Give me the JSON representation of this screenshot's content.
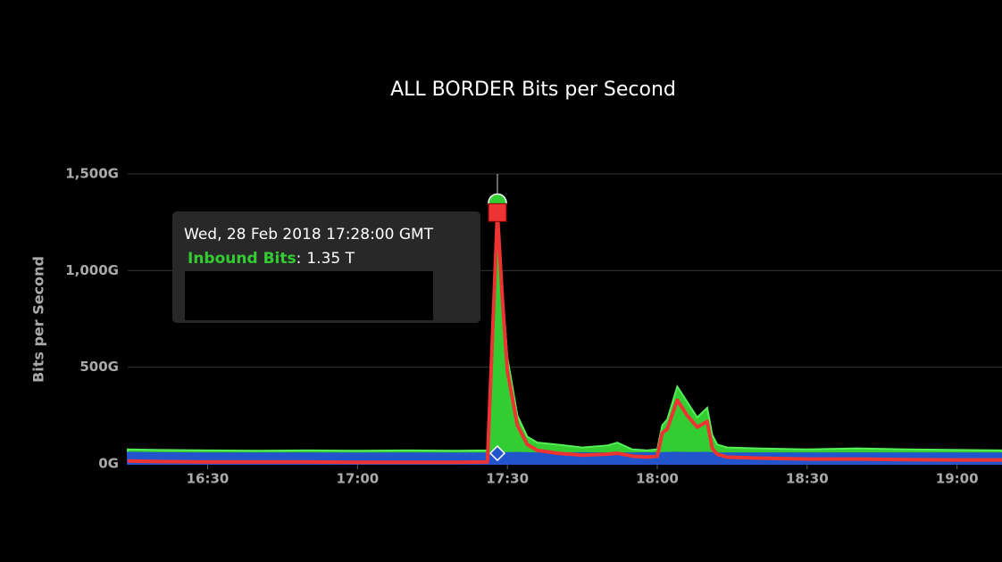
{
  "chart_data": {
    "type": "area",
    "title": "ALL BORDER Bits per Second",
    "y_label": "Bits per Second",
    "x": [
      "16:14",
      "16:20",
      "16:30",
      "16:40",
      "16:50",
      "17:00",
      "17:10",
      "17:20",
      "17:26",
      "17:27",
      "17:28",
      "17:29",
      "17:30",
      "17:32",
      "17:34",
      "17:36",
      "17:40",
      "17:45",
      "17:50",
      "17:52",
      "17:55",
      "17:58",
      "18:00",
      "18:01",
      "18:02",
      "18:04",
      "18:06",
      "18:08",
      "18:10",
      "18:11",
      "18:12",
      "18:14",
      "18:20",
      "18:30",
      "18:40",
      "18:50",
      "19:00",
      "19:09"
    ],
    "series": [
      {
        "name": "Inbound Bits",
        "color": "#33cc33",
        "style": "area",
        "values": [
          75,
          72,
          70,
          68,
          70,
          68,
          70,
          68,
          70,
          700,
          1350,
          900,
          550,
          250,
          140,
          110,
          100,
          85,
          95,
          110,
          75,
          70,
          75,
          200,
          230,
          400,
          320,
          240,
          290,
          150,
          100,
          85,
          80,
          75,
          80,
          75,
          72,
          70
        ]
      },
      {
        "color": "#2255cc",
        "style": "area",
        "values": [
          58,
          56,
          55,
          55,
          55,
          54,
          55,
          54,
          55,
          56,
          55,
          56,
          56,
          57,
          56,
          55,
          55,
          56,
          55,
          55,
          55,
          56,
          55,
          56,
          57,
          58,
          57,
          57,
          58,
          56,
          55,
          55,
          55,
          55,
          55,
          55,
          55,
          55
        ]
      },
      {
        "color": "#ee3333",
        "style": "line",
        "values": [
          15,
          12,
          10,
          10,
          10,
          8,
          8,
          8,
          10,
          650,
          1300,
          850,
          480,
          200,
          100,
          70,
          55,
          45,
          50,
          55,
          40,
          35,
          40,
          160,
          180,
          330,
          250,
          190,
          220,
          80,
          50,
          35,
          30,
          25,
          25,
          22,
          20,
          20
        ]
      }
    ],
    "xlim": [
      "16:14",
      "19:09"
    ],
    "xticks": [
      "16:30",
      "17:00",
      "17:30",
      "18:00",
      "18:30",
      "19:00"
    ],
    "ylim": [
      0,
      1500
    ],
    "yticks": [
      {
        "value": 0,
        "label": "0G"
      },
      {
        "value": 500,
        "label": "500G"
      },
      {
        "value": 1000,
        "label": "1,000G"
      },
      {
        "value": 1500,
        "label": "1,500G"
      }
    ],
    "grid": true,
    "tooltip": {
      "index": 10,
      "date": "Wed, 28 Feb 2018 17:28:00 GMT",
      "series": "Inbound Bits",
      "separator": ":",
      "value": "1.35 T"
    }
  }
}
